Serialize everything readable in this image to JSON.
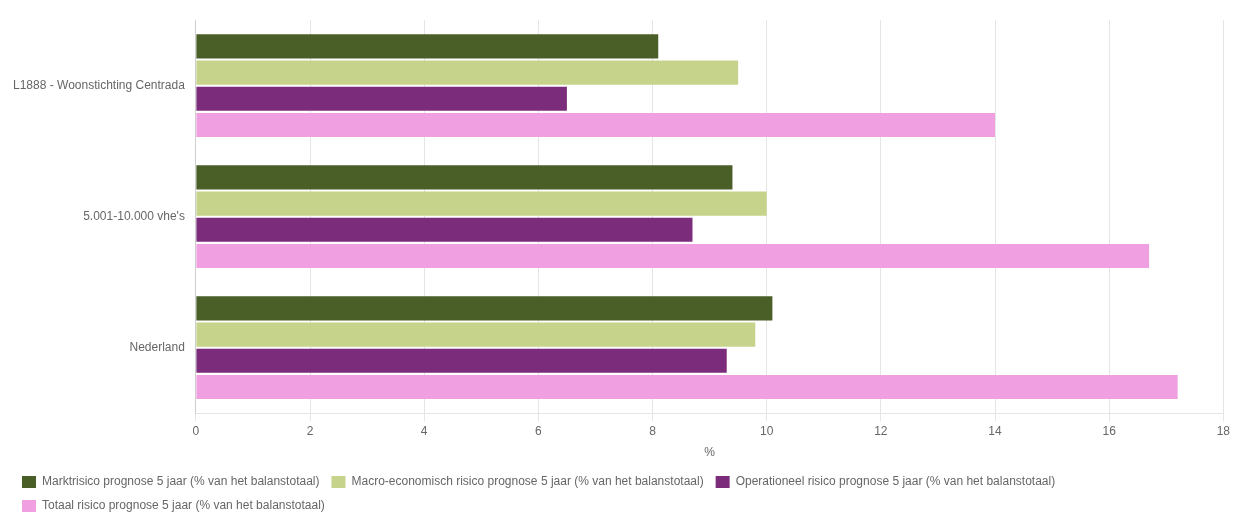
{
  "chart_data": {
    "type": "bar",
    "orientation": "horizontal",
    "categories": [
      "L1888 - Woonstichting Centrada",
      "5.001-10.000 vhe's",
      "Nederland"
    ],
    "series": [
      {
        "name": "Marktrisico prognose 5 jaar (% van het balanstotaal)",
        "color": "#4a5e28",
        "values": [
          8.1,
          9.4,
          10.1
        ]
      },
      {
        "name": "Macro-economisch risico prognose 5 jaar (% van het balanstotaal)",
        "color": "#c5d48a",
        "values": [
          9.5,
          10.0,
          9.8
        ]
      },
      {
        "name": "Operationeel risico prognose 5 jaar (% van het balanstotaal)",
        "color": "#7b2d7b",
        "values": [
          6.5,
          8.7,
          9.3
        ]
      },
      {
        "name": "Totaal risico prognose 5 jaar (% van het balanstotaal)",
        "color": "#f0a0e0",
        "values": [
          14.0,
          16.7,
          17.2
        ]
      }
    ],
    "xlabel": "%",
    "xlim": [
      0,
      18
    ],
    "xticks": [
      0,
      2,
      4,
      6,
      8,
      10,
      12,
      14,
      16,
      18
    ],
    "grid": true,
    "legend": "bottom"
  }
}
